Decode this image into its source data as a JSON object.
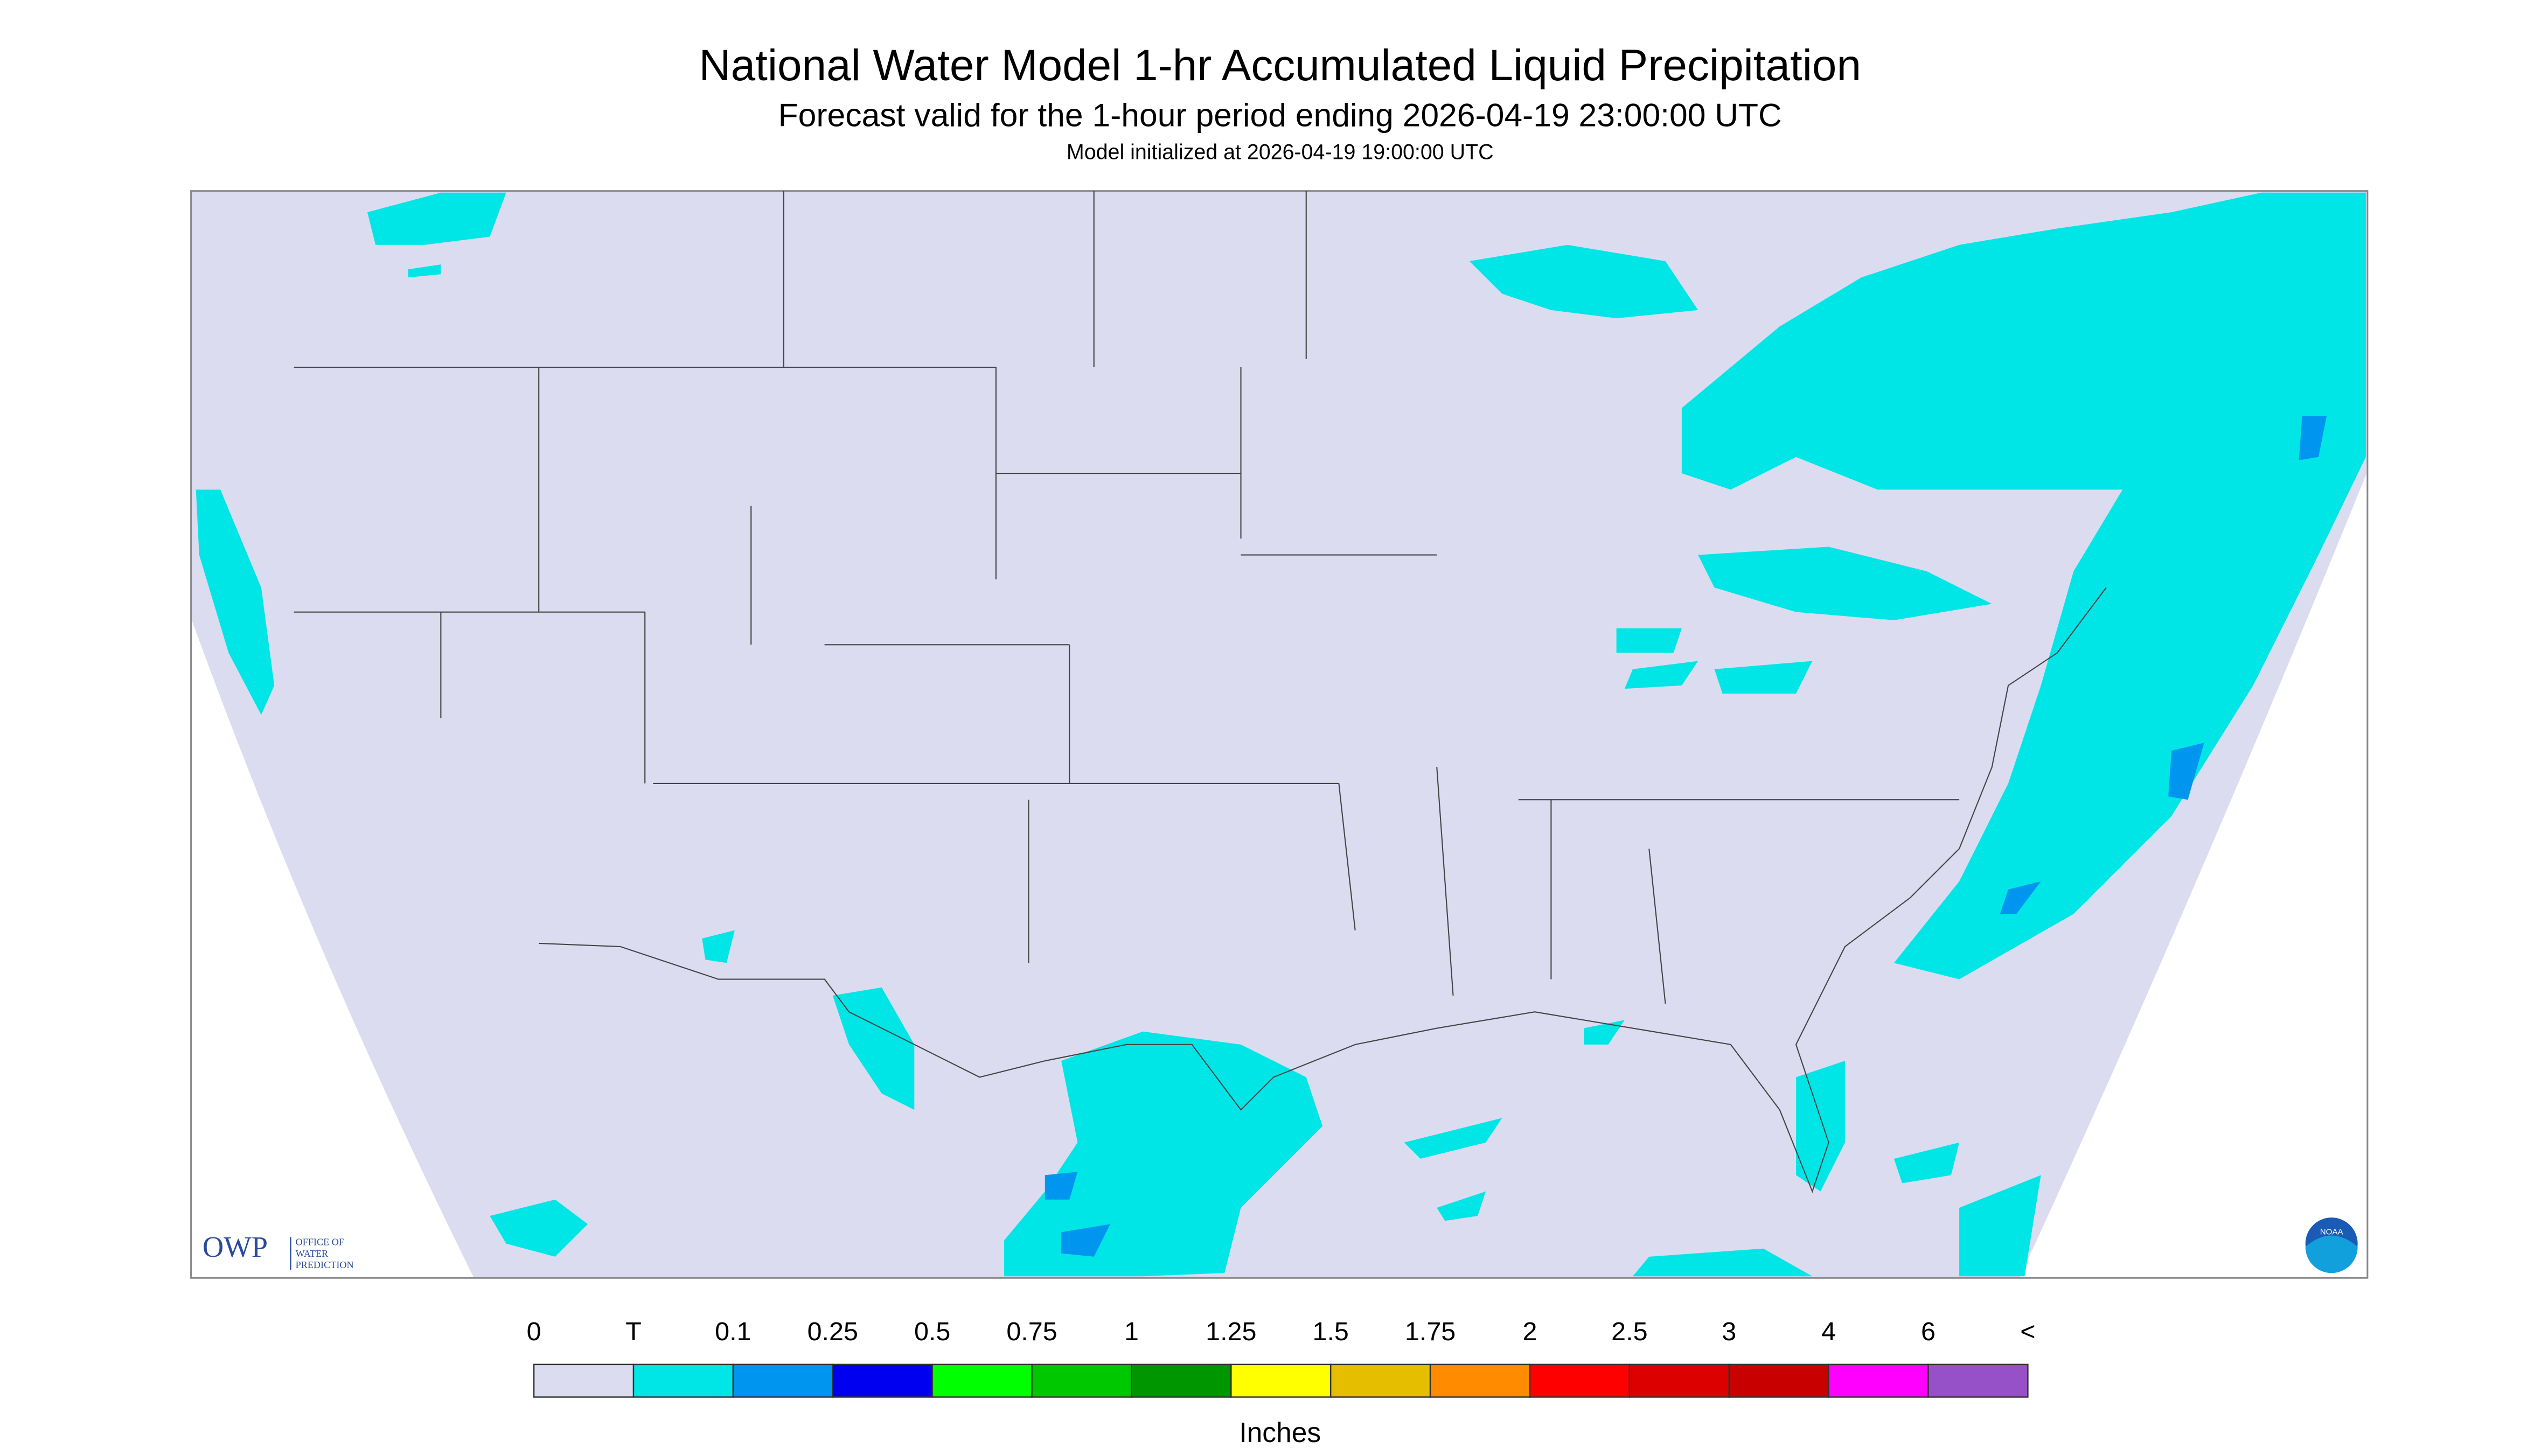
{
  "header": {
    "title": "National Water Model 1-hr Accumulated Liquid Precipitation",
    "subtitle": "Forecast valid for the 1-hour period ending 2026-04-19 23:00:00 UTC",
    "init": "Model initialized at 2026-04-19 19:00:00 UTC"
  },
  "logos": {
    "owp": "OWP",
    "owp_lines": [
      "OFFICE OF",
      "WATER",
      "PREDICTION"
    ],
    "noaa": "NOAA"
  },
  "legend": {
    "labels": [
      "0",
      "T",
      "0.1",
      "0.25",
      "0.5",
      "0.75",
      "1",
      "1.25",
      "1.5",
      "1.75",
      "2",
      "2.5",
      "3",
      "4",
      "6",
      "<"
    ],
    "colors": [
      "#dcdcf0",
      "#00e6e6",
      "#0096f0",
      "#0000f0",
      "#00ff00",
      "#00c800",
      "#009600",
      "#ffff00",
      "#e6be00",
      "#ff8c00",
      "#ff0000",
      "#dc0000",
      "#c80000",
      "#ff00ff",
      "#9650c8"
    ],
    "units": "Inches"
  }
}
